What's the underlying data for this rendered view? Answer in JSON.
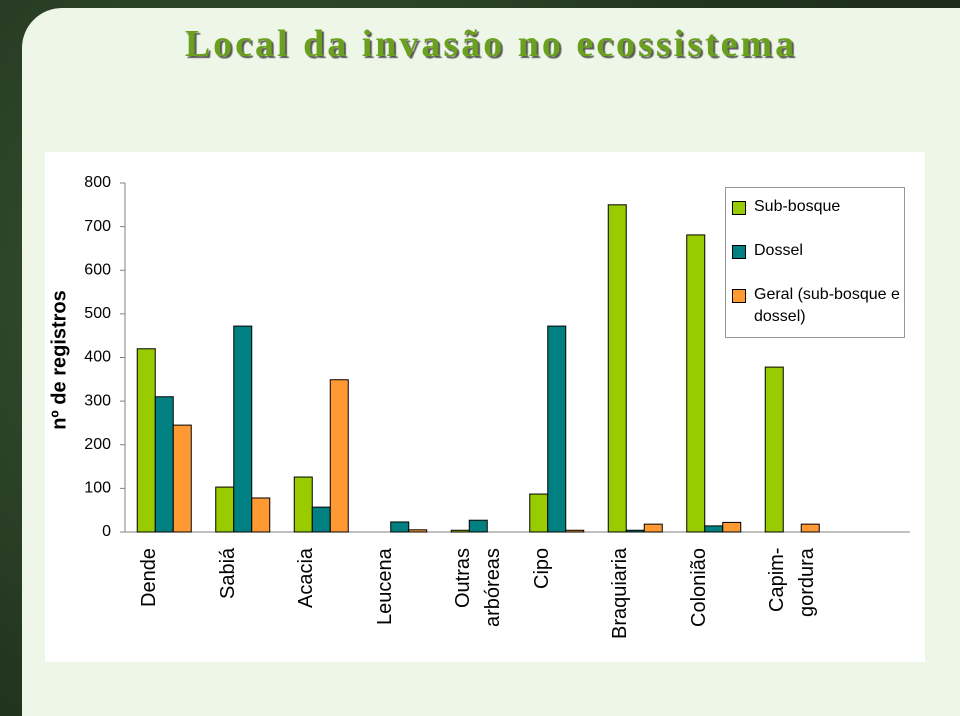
{
  "chart_data": {
    "type": "bar",
    "title": "Local da invasão no ecossistema",
    "y_label": "nº de registros",
    "categories": [
      "Dende",
      "Sabiá",
      "Acacia",
      "Leucena",
      "Outras arbóreas",
      "Cipo",
      "Braquiaria",
      "Colonião",
      "Capim-gordura",
      null
    ],
    "series": [
      {
        "name": "Sub-bosque",
        "color": "#99cc00",
        "values": [
          420,
          103,
          126,
          0,
          4,
          87,
          750,
          681,
          378,
          0
        ]
      },
      {
        "name": "Dossel",
        "color": "#008080",
        "values": [
          310,
          472,
          57,
          23,
          27,
          472,
          4,
          14,
          0,
          0
        ]
      },
      {
        "name": "Geral (sub-bosque e dossel)",
        "color": "#ff9933",
        "values": [
          245,
          78,
          349,
          5,
          0,
          4,
          18,
          22,
          18,
          0
        ]
      }
    ],
    "ylim": [
      0,
      800
    ],
    "yticks": [
      0,
      100,
      200,
      300,
      400,
      500,
      600,
      700,
      800
    ],
    "legend": "upper right"
  }
}
